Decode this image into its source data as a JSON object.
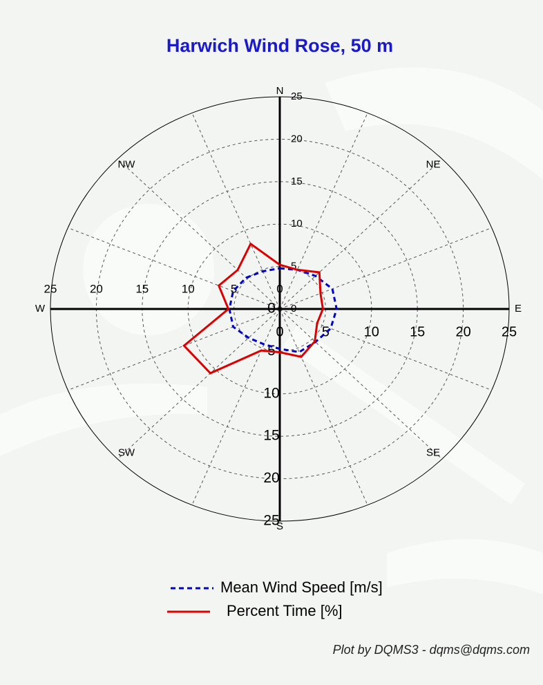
{
  "chart_data": {
    "type": "polar",
    "title": "Harwich Wind Rose, 50 m",
    "credit": "Plot by DQMS3 - dqms@dqms.com",
    "categories": [
      "N",
      null,
      "NE",
      null,
      "E",
      null,
      "SE",
      null,
      "S",
      null,
      "SW",
      null,
      "W",
      null,
      "NW",
      null
    ],
    "rlim": [
      0,
      25
    ],
    "rticks": [
      0,
      5,
      10,
      15,
      20,
      25
    ],
    "grid": true,
    "legend": "bottom",
    "series": [
      {
        "name": "Mean Wind Speed [m/s]",
        "color": "#0000cc",
        "dash": true,
        "values": [
          4.8,
          5.0,
          5.5,
          6.2,
          6.2,
          6.0,
          5.5,
          5.5,
          4.7,
          4.5,
          4.8,
          5.5,
          5.5,
          5.5,
          5.2,
          4.8
        ]
      },
      {
        "name": "Percent Time [%]",
        "color": "#dd0000",
        "dash": false,
        "values": [
          5.2,
          5.0,
          6.1,
          4.8,
          4.7,
          4.4,
          5.4,
          6.1,
          5.1,
          5.3,
          10.7,
          11.3,
          5.6,
          7.2,
          6.5,
          8.3
        ]
      }
    ]
  }
}
